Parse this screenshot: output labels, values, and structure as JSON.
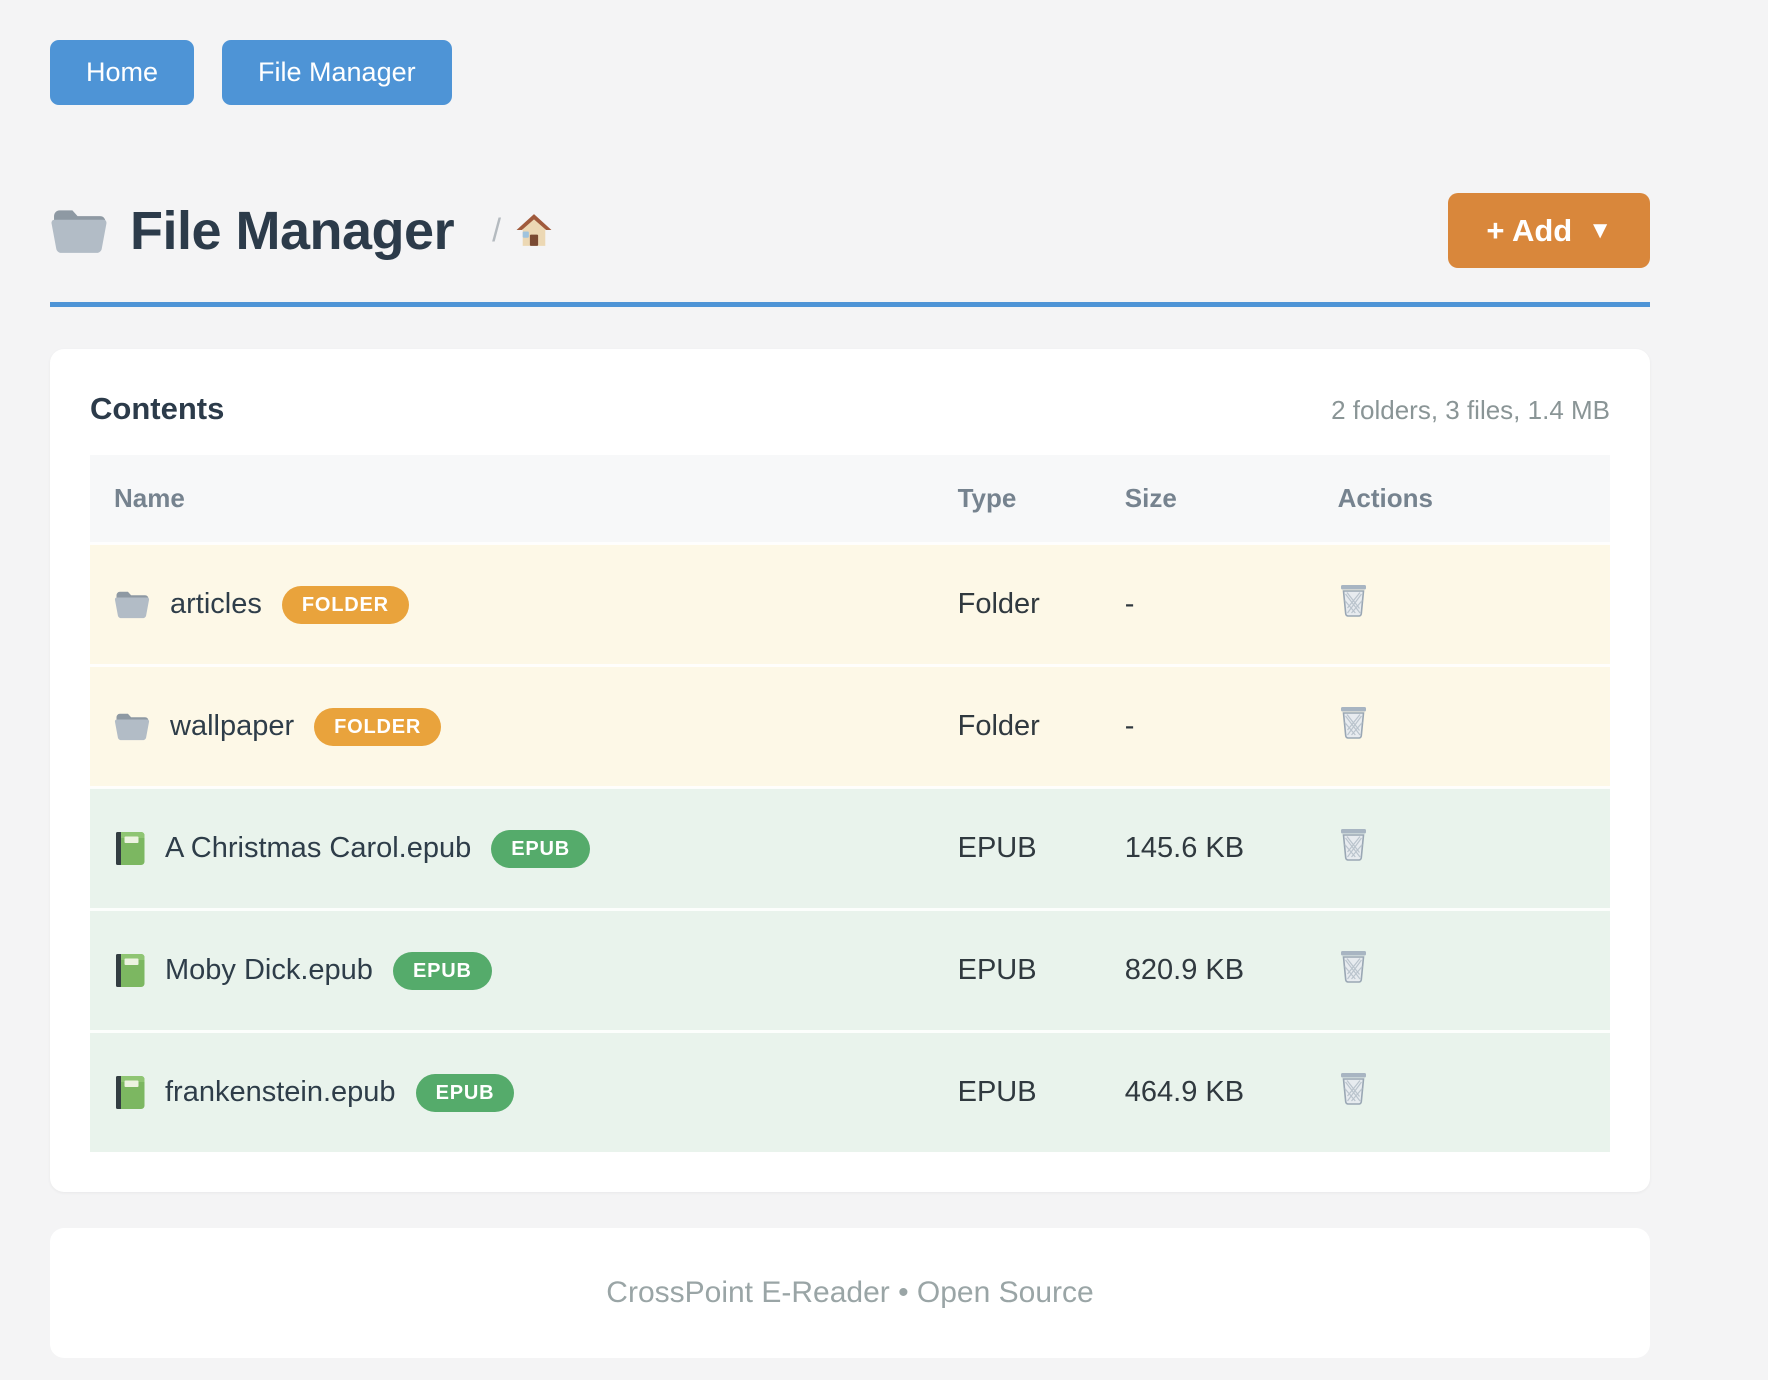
{
  "nav": {
    "items": [
      {
        "label": "Home"
      },
      {
        "label": "File Manager"
      }
    ]
  },
  "header": {
    "title": "File Manager",
    "title_icon": "folder-icon",
    "breadcrumb_separator": "/",
    "breadcrumb_home_icon": "house-icon",
    "add_button_label": "+ Add",
    "add_button_caret": "▼"
  },
  "contents": {
    "title": "Contents",
    "summary": "2 folders, 3 files, 1.4 MB",
    "table": {
      "columns": [
        "Name",
        "Type",
        "Size",
        "Actions"
      ],
      "rows": [
        {
          "name": "articles",
          "icon": "folder-icon",
          "badge": "FOLDER",
          "kind": "folder",
          "type": "Folder",
          "size": "-",
          "action_icon": "trash-icon"
        },
        {
          "name": "wallpaper",
          "icon": "folder-icon",
          "badge": "FOLDER",
          "kind": "folder",
          "type": "Folder",
          "size": "-",
          "action_icon": "trash-icon"
        },
        {
          "name": "A Christmas Carol.epub",
          "icon": "book-icon",
          "badge": "EPUB",
          "kind": "file",
          "type": "EPUB",
          "size": "145.6 KB",
          "action_icon": "trash-icon"
        },
        {
          "name": "Moby Dick.epub",
          "icon": "book-icon",
          "badge": "EPUB",
          "kind": "file",
          "type": "EPUB",
          "size": "820.9 KB",
          "action_icon": "trash-icon"
        },
        {
          "name": "frankenstein.epub",
          "icon": "book-icon",
          "badge": "EPUB",
          "kind": "file",
          "type": "EPUB",
          "size": "464.9 KB",
          "action_icon": "trash-icon"
        }
      ]
    }
  },
  "footer": {
    "text": "CrossPoint E-Reader • Open Source"
  },
  "colors": {
    "primary_blue": "#4e94d6",
    "accent_orange": "#d9873b",
    "folder_badge_orange": "#e9a33c",
    "epub_badge_green": "#55ab6b",
    "folder_row_bg": "#fdf8e7",
    "file_row_bg": "#e9f3ec"
  }
}
